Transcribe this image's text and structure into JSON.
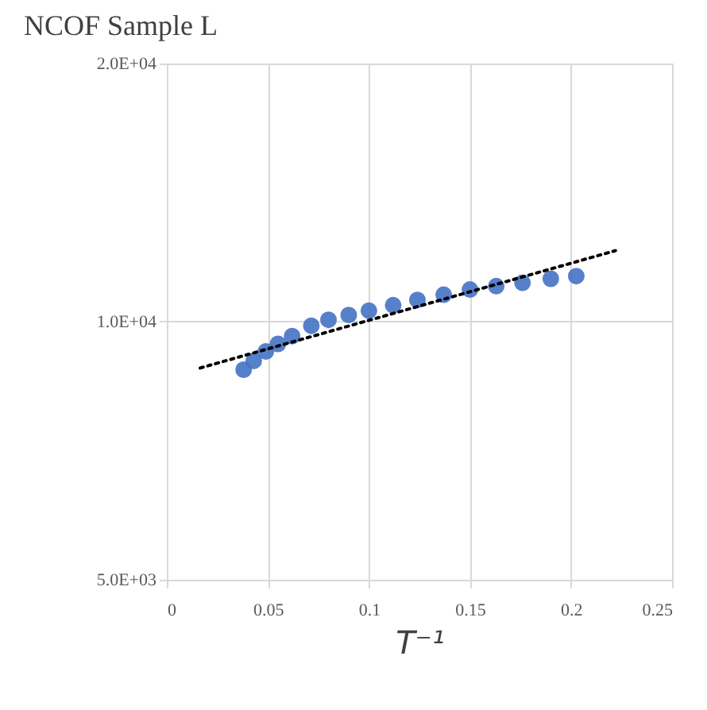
{
  "chart_data": {
    "type": "scatter",
    "title": "NCOF Sample L",
    "xlabel": "T⁻¹",
    "xlim": [
      0,
      0.25
    ],
    "xticks": [
      0,
      0.05,
      0.1,
      0.15,
      0.2,
      0.25
    ],
    "ylim": [
      5000,
      20000
    ],
    "yticks": [
      {
        "value": 5000,
        "label": "5.0E+03"
      },
      {
        "value": 10000,
        "label": "1.0E+04"
      },
      {
        "value": 20000,
        "label": "2.0E+04"
      }
    ],
    "log": "y",
    "grid": true,
    "series": [
      {
        "color": "#4472c4",
        "marker": "circle",
        "x": [
          0.038,
          0.043,
          0.049,
          0.055,
          0.062,
          0.0715,
          0.08,
          0.09,
          0.1,
          0.112,
          0.124,
          0.137,
          0.15,
          0.163,
          0.176,
          0.19,
          0.2026
        ],
        "values": [
          8790,
          9000,
          9230,
          9420,
          9620,
          9890,
          10050,
          10180,
          10300,
          10450,
          10600,
          10750,
          10900,
          11000,
          11100,
          11220,
          11300
        ]
      },
      {
        "type": "line",
        "color": "#000000",
        "line_style": "dotted",
        "marker": "none",
        "x": [
          0.0165,
          0.222
        ],
        "values": [
          8830,
          12100
        ]
      }
    ]
  }
}
